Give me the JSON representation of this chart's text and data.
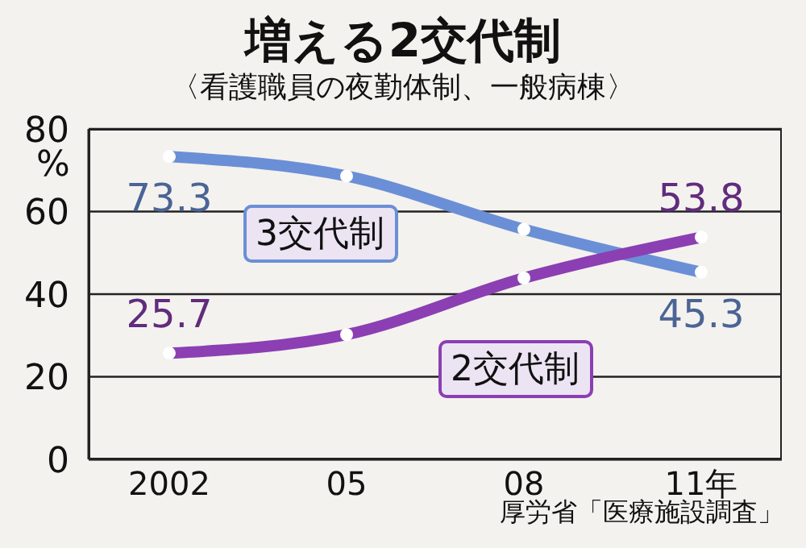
{
  "chart_data": {
    "type": "line",
    "title": "増える2交代制",
    "subtitle": "〈看護職員の夜勤体制、一般病棟〉",
    "ylabel": "%",
    "categories": [
      "2002",
      "05",
      "08",
      "11年"
    ],
    "series": [
      {
        "name": "3交代制",
        "color": "#6b8fd6",
        "values": [
          73.3,
          68.6,
          55.7,
          45.3
        ],
        "value_labels": [
          "73.3",
          null,
          null,
          "45.3"
        ]
      },
      {
        "name": "2交代制",
        "color": "#8b3fb3",
        "values": [
          25.7,
          30.2,
          43.9,
          53.8
        ],
        "value_labels": [
          "25.7",
          null,
          null,
          "53.8"
        ]
      }
    ],
    "ylim": [
      0,
      80
    ],
    "yticks": [
      0,
      20,
      40,
      60,
      80
    ],
    "grid": "y",
    "marker": "circle",
    "line_style": "solid",
    "legend": false,
    "annotations": [
      "厚労省「医療施設調査」"
    ]
  }
}
